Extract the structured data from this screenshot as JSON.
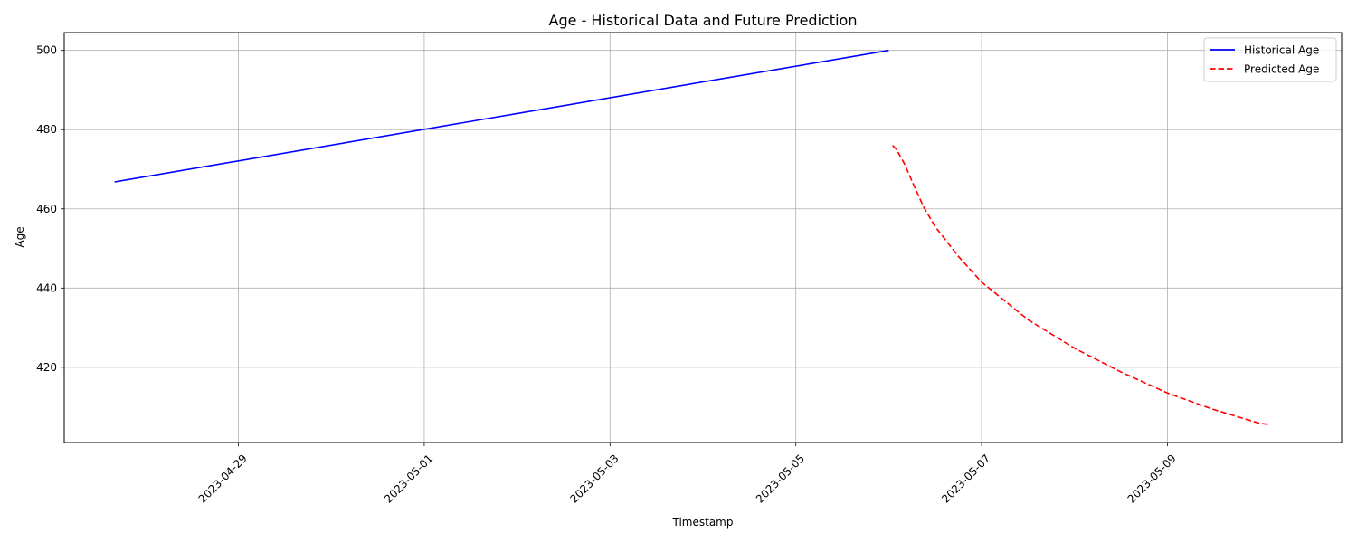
{
  "chart_data": {
    "type": "line",
    "title": "Age - Historical Data and Future Prediction",
    "xlabel": "Timestamp",
    "ylabel": "Age",
    "x_type": "date",
    "xlim": [
      "2023-04-27T03:00",
      "2023-05-10T21:00"
    ],
    "ylim": [
      401,
      504.5
    ],
    "x_ticks": [
      "2023-04-29",
      "2023-05-01",
      "2023-05-03",
      "2023-05-05",
      "2023-05-07",
      "2023-05-09"
    ],
    "y_ticks": [
      420,
      440,
      460,
      480,
      500
    ],
    "grid": true,
    "legend_position": "top-right",
    "series": [
      {
        "name": "Historical Age",
        "color": "#0000ff",
        "style": "solid",
        "points": [
          {
            "x": "2023-04-27T16:00",
            "y": 466.8
          },
          {
            "x": "2023-05-06T00:00",
            "y": 500.0
          }
        ]
      },
      {
        "name": "Predicted Age",
        "color": "#ff0000",
        "style": "dashed",
        "points": [
          {
            "x": "2023-05-06T01:00",
            "y": 476.0
          },
          {
            "x": "2023-05-06T02:00",
            "y": 475.0
          },
          {
            "x": "2023-05-06T04:00",
            "y": 471.5
          },
          {
            "x": "2023-05-06T06:00",
            "y": 467.0
          },
          {
            "x": "2023-05-06T09:00",
            "y": 460.5
          },
          {
            "x": "2023-05-06T12:00",
            "y": 455.5
          },
          {
            "x": "2023-05-06T18:00",
            "y": 448.0
          },
          {
            "x": "2023-05-07T00:00",
            "y": 441.5
          },
          {
            "x": "2023-05-07T12:00",
            "y": 432.0
          },
          {
            "x": "2023-05-08T00:00",
            "y": 424.8
          },
          {
            "x": "2023-05-08T12:00",
            "y": 418.8
          },
          {
            "x": "2023-05-09T00:00",
            "y": 413.5
          },
          {
            "x": "2023-05-09T12:00",
            "y": 409.3
          },
          {
            "x": "2023-05-10T00:00",
            "y": 405.8
          },
          {
            "x": "2023-05-10T02:00",
            "y": 405.6
          }
        ]
      }
    ]
  }
}
